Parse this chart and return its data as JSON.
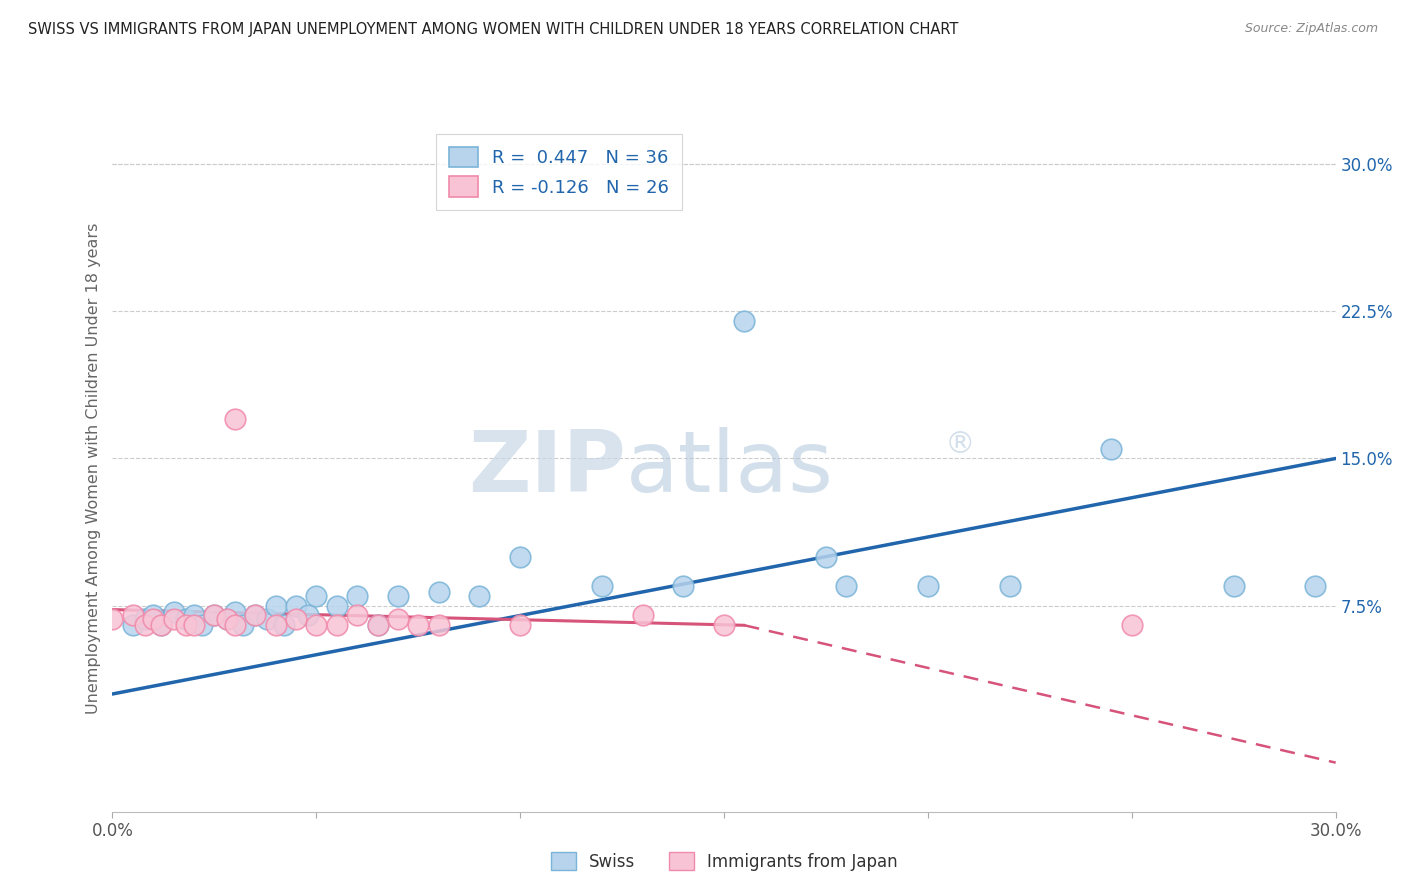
{
  "title": "SWISS VS IMMIGRANTS FROM JAPAN UNEMPLOYMENT AMONG WOMEN WITH CHILDREN UNDER 18 YEARS CORRELATION CHART",
  "source": "Source: ZipAtlas.com",
  "ylabel": "Unemployment Among Women with Children Under 18 years",
  "xlim": [
    0.0,
    0.3
  ],
  "ylim": [
    -0.03,
    0.32
  ],
  "ytick_vals": [
    0.0,
    0.075,
    0.15,
    0.225,
    0.3
  ],
  "ytick_labels": [
    "",
    "7.5%",
    "15.0%",
    "22.5%",
    "30.0%"
  ],
  "xtick_vals": [
    0.0,
    0.05,
    0.1,
    0.15,
    0.2,
    0.25,
    0.3
  ],
  "xtick_labels": [
    "0.0%",
    "",
    "",
    "",
    "",
    "",
    "30.0%"
  ],
  "watermark_zip": "ZIP",
  "watermark_atlas": "atlas",
  "watermark_reg": "®",
  "legend_swiss_R": "R =  0.447",
  "legend_swiss_N": "N = 36",
  "legend_japan_R": "R = -0.126",
  "legend_japan_N": "N = 26",
  "swiss_edge": "#7ab4d8",
  "swiss_face": "#b8d4ed",
  "japan_edge": "#f08aaa",
  "japan_face": "#f8c4d5",
  "trend_swiss_color": "#2166ac",
  "trend_japan_color": "#d6537a",
  "bg_color": "#ffffff",
  "grid_color": "#cccccc",
  "axis_label_color": "#666666",
  "title_color": "#222222",
  "swiss_scatter_x": [
    0.005,
    0.008,
    0.01,
    0.012,
    0.015,
    0.018,
    0.02,
    0.022,
    0.025,
    0.028,
    0.03,
    0.032,
    0.035,
    0.038,
    0.04,
    0.042,
    0.045,
    0.048,
    0.05,
    0.055,
    0.06,
    0.065,
    0.07,
    0.08,
    0.09,
    0.1,
    0.12,
    0.14,
    0.155,
    0.175,
    0.18,
    0.2,
    0.22,
    0.245,
    0.275,
    0.295
  ],
  "swiss_scatter_y": [
    0.065,
    0.068,
    0.07,
    0.065,
    0.072,
    0.068,
    0.07,
    0.065,
    0.07,
    0.068,
    0.072,
    0.065,
    0.07,
    0.068,
    0.075,
    0.065,
    0.075,
    0.07,
    0.08,
    0.075,
    0.08,
    0.065,
    0.08,
    0.082,
    0.08,
    0.1,
    0.085,
    0.085,
    0.22,
    0.1,
    0.085,
    0.085,
    0.085,
    0.155,
    0.085,
    0.085
  ],
  "japan_scatter_x": [
    0.0,
    0.005,
    0.008,
    0.01,
    0.012,
    0.015,
    0.018,
    0.02,
    0.025,
    0.028,
    0.03,
    0.035,
    0.04,
    0.045,
    0.05,
    0.055,
    0.06,
    0.065,
    0.07,
    0.075,
    0.08,
    0.1,
    0.13,
    0.15,
    0.25,
    0.03
  ],
  "japan_scatter_y": [
    0.068,
    0.07,
    0.065,
    0.068,
    0.065,
    0.068,
    0.065,
    0.065,
    0.07,
    0.068,
    0.065,
    0.07,
    0.065,
    0.068,
    0.065,
    0.065,
    0.07,
    0.065,
    0.068,
    0.065,
    0.065,
    0.065,
    0.07,
    0.065,
    0.065,
    0.17
  ],
  "trend_swiss_x0": 0.0,
  "trend_swiss_y0": 0.03,
  "trend_swiss_x1": 0.3,
  "trend_swiss_y1": 0.15,
  "trend_japan_x0": 0.0,
  "trend_japan_y0": 0.073,
  "trend_japan_x1": 0.155,
  "trend_japan_y1": 0.065,
  "trend_japan_dash_x0": 0.155,
  "trend_japan_dash_y0": 0.065,
  "trend_japan_dash_x1": 0.3,
  "trend_japan_dash_y1": -0.005
}
